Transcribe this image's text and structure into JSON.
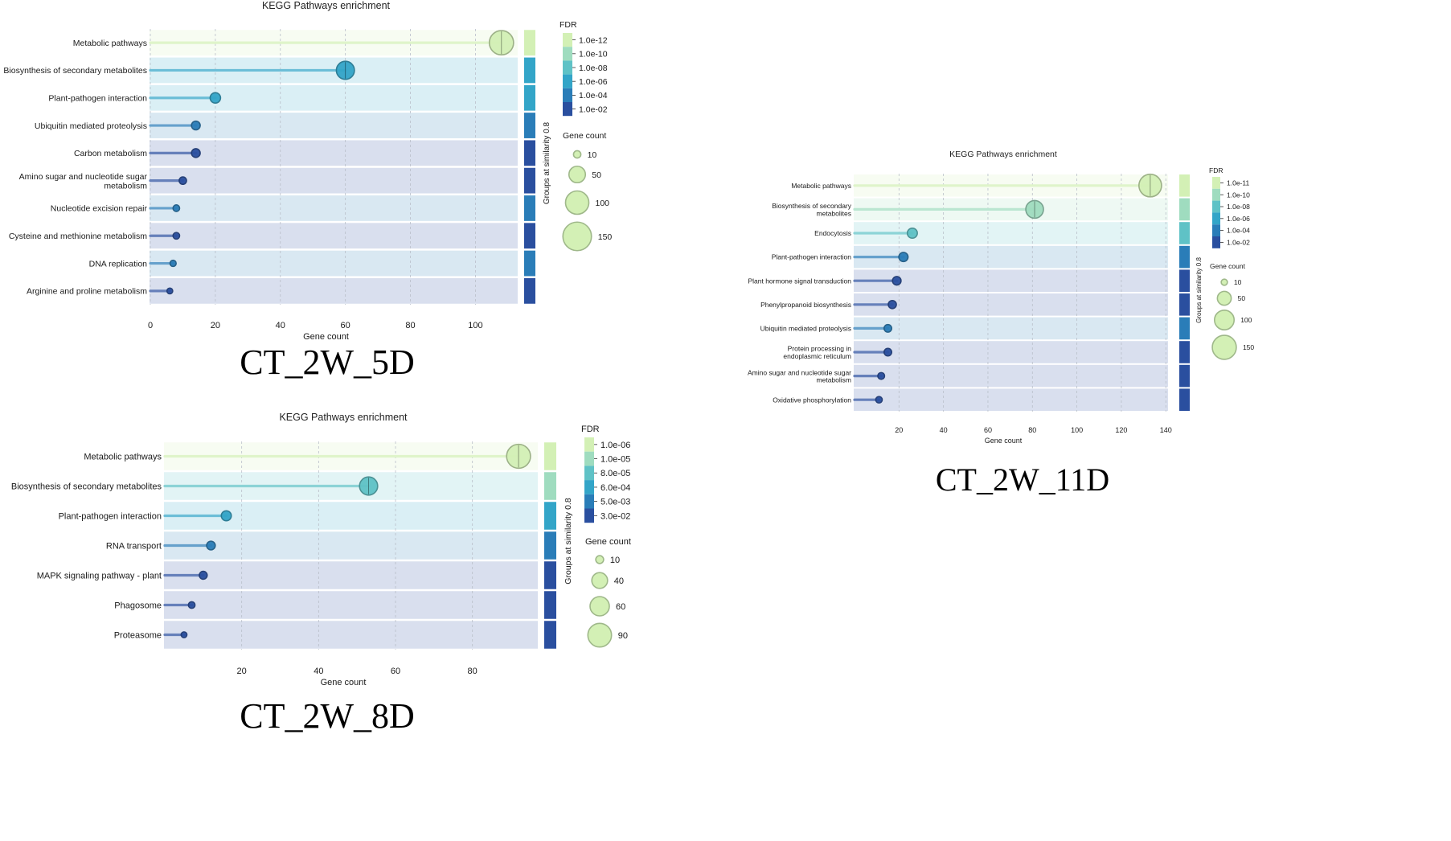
{
  "chart_data": [
    {
      "id": "ct5",
      "type": "lollipop",
      "title": "KEGG Pathways enrichment",
      "xlabel": "Gene count",
      "xlim": [
        0,
        113
      ],
      "xticks": [
        0,
        20,
        40,
        60,
        80,
        100
      ],
      "groups_label": "Groups at similarity 0.8",
      "panel_caption": "CT_2W_5D",
      "fdr_title": "FDR",
      "fdr_labels": [
        "1.0e-12",
        "1.0e-10",
        "1.0e-08",
        "1.0e-06",
        "1.0e-04",
        "1.0e-02"
      ],
      "fdr_colors": [
        "#d3f0b5",
        "#9fdcbf",
        "#5fc2c6",
        "#33a5c8",
        "#2a7db8",
        "#2a4f9f"
      ],
      "gene_count_title": "Gene count",
      "gene_count_legend": [
        10,
        50,
        100,
        150
      ],
      "pathways": [
        {
          "name": "Metabolic pathways",
          "count": 108,
          "fdr_level": 0,
          "group_level": 0
        },
        {
          "name": "Biosynthesis of secondary metabolites",
          "count": 60,
          "fdr_level": 3,
          "group_level": 3
        },
        {
          "name": "Plant-pathogen interaction",
          "count": 20,
          "fdr_level": 3,
          "group_level": 3
        },
        {
          "name": "Ubiquitin mediated proteolysis",
          "count": 14,
          "fdr_level": 4,
          "group_level": 4
        },
        {
          "name": "Carbon metabolism",
          "count": 14,
          "fdr_level": 5,
          "group_level": 5
        },
        {
          "name": "Amino sugar and nucleotide sugar metabolism",
          "count": 10,
          "fdr_level": 5,
          "group_level": 5
        },
        {
          "name": "Nucleotide excision repair",
          "count": 8,
          "fdr_level": 4,
          "group_level": 4
        },
        {
          "name": "Cysteine and methionine metabolism",
          "count": 8,
          "fdr_level": 5,
          "group_level": 5
        },
        {
          "name": "DNA replication",
          "count": 7,
          "fdr_level": 4,
          "group_level": 4
        },
        {
          "name": "Arginine and proline metabolism",
          "count": 6,
          "fdr_level": 5,
          "group_level": 5
        }
      ]
    },
    {
      "id": "ct8",
      "type": "lollipop",
      "title": "KEGG Pathways enrichment",
      "xlabel": "Gene count",
      "xlim": [
        0,
        97
      ],
      "xticks": [
        20,
        40,
        60,
        80
      ],
      "groups_label": "Groups at similarity 0.8",
      "panel_caption": "CT_2W_8D",
      "fdr_title": "FDR",
      "fdr_labels": [
        "1.0e-06",
        "1.0e-05",
        "8.0e-05",
        "6.0e-04",
        "5.0e-03",
        "3.0e-02"
      ],
      "fdr_colors": [
        "#d3f0b5",
        "#9fdcbf",
        "#5fc2c6",
        "#33a5c8",
        "#2a7db8",
        "#2a4f9f"
      ],
      "gene_count_title": "Gene count",
      "gene_count_legend": [
        10,
        40,
        60,
        90
      ],
      "pathways": [
        {
          "name": "Metabolic pathways",
          "count": 92,
          "fdr_level": 0,
          "group_level": 0
        },
        {
          "name": "Biosynthesis of secondary metabolites",
          "count": 53,
          "fdr_level": 2,
          "group_level": 1
        },
        {
          "name": "Plant-pathogen interaction",
          "count": 16,
          "fdr_level": 3,
          "group_level": 3
        },
        {
          "name": "RNA transport",
          "count": 12,
          "fdr_level": 4,
          "group_level": 4
        },
        {
          "name": "MAPK signaling pathway - plant",
          "count": 10,
          "fdr_level": 5,
          "group_level": 5
        },
        {
          "name": "Phagosome",
          "count": 7,
          "fdr_level": 5,
          "group_level": 5
        },
        {
          "name": "Proteasome",
          "count": 5,
          "fdr_level": 5,
          "group_level": 5
        }
      ]
    },
    {
      "id": "ct11",
      "type": "lollipop",
      "title": "KEGG Pathways enrichment",
      "xlabel": "Gene count",
      "xlim": [
        0,
        141
      ],
      "xticks": [
        20,
        40,
        60,
        80,
        100,
        120,
        140
      ],
      "groups_label": "Groups at similarity 0.8",
      "panel_caption": "CT_2W_11D",
      "fdr_title": "FDR",
      "fdr_labels": [
        "1.0e-11",
        "1.0e-10",
        "1.0e-08",
        "1.0e-06",
        "1.0e-04",
        "1.0e-02"
      ],
      "fdr_colors": [
        "#d3f0b5",
        "#9fdcbf",
        "#5fc2c6",
        "#33a5c8",
        "#2a7db8",
        "#2a4f9f"
      ],
      "gene_count_title": "Gene count",
      "gene_count_legend": [
        10,
        50,
        100,
        150
      ],
      "pathways": [
        {
          "name": "Metabolic pathways",
          "count": 133,
          "fdr_level": 0,
          "group_level": 0
        },
        {
          "name": "Biosynthesis of secondary metabolites",
          "count": 81,
          "fdr_level": 1,
          "group_level": 1
        },
        {
          "name": "Endocytosis",
          "count": 26,
          "fdr_level": 2,
          "group_level": 2
        },
        {
          "name": "Plant-pathogen interaction",
          "count": 22,
          "fdr_level": 4,
          "group_level": 4
        },
        {
          "name": "Plant hormone signal transduction",
          "count": 19,
          "fdr_level": 5,
          "group_level": 5
        },
        {
          "name": "Phenylpropanoid biosynthesis",
          "count": 17,
          "fdr_level": 5,
          "group_level": 5
        },
        {
          "name": "Ubiquitin mediated proteolysis",
          "count": 15,
          "fdr_level": 4,
          "group_level": 4
        },
        {
          "name": "Protein processing in endoplasmic reticulum",
          "count": 15,
          "fdr_level": 5,
          "group_level": 5
        },
        {
          "name": "Amino sugar and nucleotide sugar metabolism",
          "count": 12,
          "fdr_level": 5,
          "group_level": 5
        },
        {
          "name": "Oxidative phosphorylation",
          "count": 11,
          "fdr_level": 5,
          "group_level": 5
        }
      ]
    }
  ]
}
